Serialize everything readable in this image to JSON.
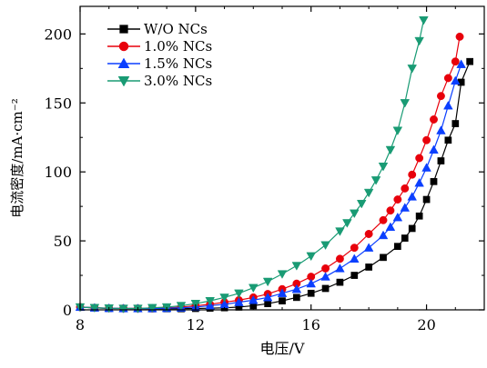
{
  "chart_data": {
    "type": "line",
    "title": "",
    "xlabel": "电压/V",
    "ylabel": "电流密度/mA·cm⁻²",
    "xlim": [
      8,
      22
    ],
    "ylim": [
      0,
      220
    ],
    "x_ticks": [
      8,
      12,
      16,
      20
    ],
    "y_ticks": [
      0,
      50,
      100,
      150,
      200
    ],
    "grid": false,
    "legend_position": "top-left",
    "series": [
      {
        "name": "W/O NCs",
        "color": "#000000",
        "marker": "square",
        "x": [
          8.0,
          8.5,
          9.0,
          9.5,
          10.0,
          10.5,
          11.0,
          11.5,
          12.0,
          12.5,
          13.0,
          13.5,
          14.0,
          14.5,
          15.0,
          15.5,
          16.0,
          16.5,
          17.0,
          17.5,
          18.0,
          18.5,
          19.0,
          19.25,
          19.5,
          19.75,
          20.0,
          20.25,
          20.5,
          20.75,
          21.0,
          21.2,
          21.5
        ],
        "y": [
          2.0,
          1.5,
          1.0,
          1.0,
          1.0,
          0.8,
          0.8,
          0.8,
          1.0,
          1.2,
          1.5,
          2.0,
          3.0,
          4.5,
          6.5,
          9.0,
          12.0,
          15.5,
          20.0,
          25.0,
          31.0,
          38.0,
          46.0,
          52.0,
          59.0,
          68.0,
          80.0,
          93.0,
          108.0,
          123.0,
          135.0,
          165.0,
          180.0
        ]
      },
      {
        "name": "1.0% NCs",
        "color": "#e8000b",
        "marker": "circle",
        "x": [
          8.0,
          8.5,
          9.0,
          9.5,
          10.0,
          10.5,
          11.0,
          11.5,
          12.0,
          12.5,
          13.0,
          13.5,
          14.0,
          14.5,
          15.0,
          15.5,
          16.0,
          16.5,
          17.0,
          17.5,
          18.0,
          18.5,
          18.75,
          19.0,
          19.25,
          19.5,
          19.75,
          20.0,
          20.25,
          20.5,
          20.75,
          21.0,
          21.15
        ],
        "y": [
          2.0,
          1.5,
          1.2,
          1.0,
          1.0,
          1.0,
          1.5,
          2.0,
          3.0,
          4.0,
          5.5,
          7.0,
          9.0,
          11.5,
          15.0,
          19.0,
          24.0,
          30.0,
          37.0,
          45.0,
          55.0,
          65.0,
          72.0,
          80.0,
          88.0,
          98.0,
          110.0,
          123.0,
          138.0,
          155.0,
          168.0,
          180.0,
          198.0
        ]
      },
      {
        "name": "1.5% NCs",
        "color": "#0b3fff",
        "marker": "triangle-up",
        "x": [
          8.0,
          8.5,
          9.0,
          9.5,
          10.0,
          10.5,
          11.0,
          11.5,
          12.0,
          12.5,
          13.0,
          13.5,
          14.0,
          14.5,
          15.0,
          15.5,
          16.0,
          16.5,
          17.0,
          17.5,
          18.0,
          18.5,
          18.75,
          19.0,
          19.25,
          19.5,
          19.75,
          20.0,
          20.25,
          20.5,
          20.75,
          21.0,
          21.2
        ],
        "y": [
          2.0,
          1.5,
          1.2,
          1.0,
          1.0,
          1.0,
          1.2,
          1.5,
          2.0,
          3.0,
          4.0,
          5.5,
          7.0,
          9.0,
          12.0,
          15.0,
          19.0,
          24.0,
          30.0,
          37.0,
          45.0,
          54.0,
          60.0,
          67.0,
          74.0,
          82.0,
          92.0,
          103.0,
          116.0,
          130.0,
          148.0,
          166.0,
          178.0
        ]
      },
      {
        "name": "3.0% NCs",
        "color": "#199b74",
        "marker": "triangle-down",
        "x": [
          8.0,
          8.5,
          9.0,
          9.5,
          10.0,
          10.5,
          11.0,
          11.5,
          12.0,
          12.5,
          13.0,
          13.5,
          14.0,
          14.5,
          15.0,
          15.5,
          16.0,
          16.5,
          17.0,
          17.25,
          17.5,
          17.75,
          18.0,
          18.25,
          18.5,
          18.75,
          19.0,
          19.25,
          19.5,
          19.75,
          19.9
        ],
        "y": [
          2.0,
          1.5,
          1.2,
          1.0,
          1.0,
          1.5,
          2.0,
          3.0,
          4.5,
          6.5,
          9.0,
          12.0,
          16.0,
          20.5,
          26.0,
          32.0,
          39.0,
          47.0,
          57.0,
          63.0,
          70.0,
          77.0,
          85.0,
          94.0,
          104.0,
          116.0,
          130.0,
          150.0,
          175.0,
          195.0,
          210.0
        ]
      }
    ]
  }
}
